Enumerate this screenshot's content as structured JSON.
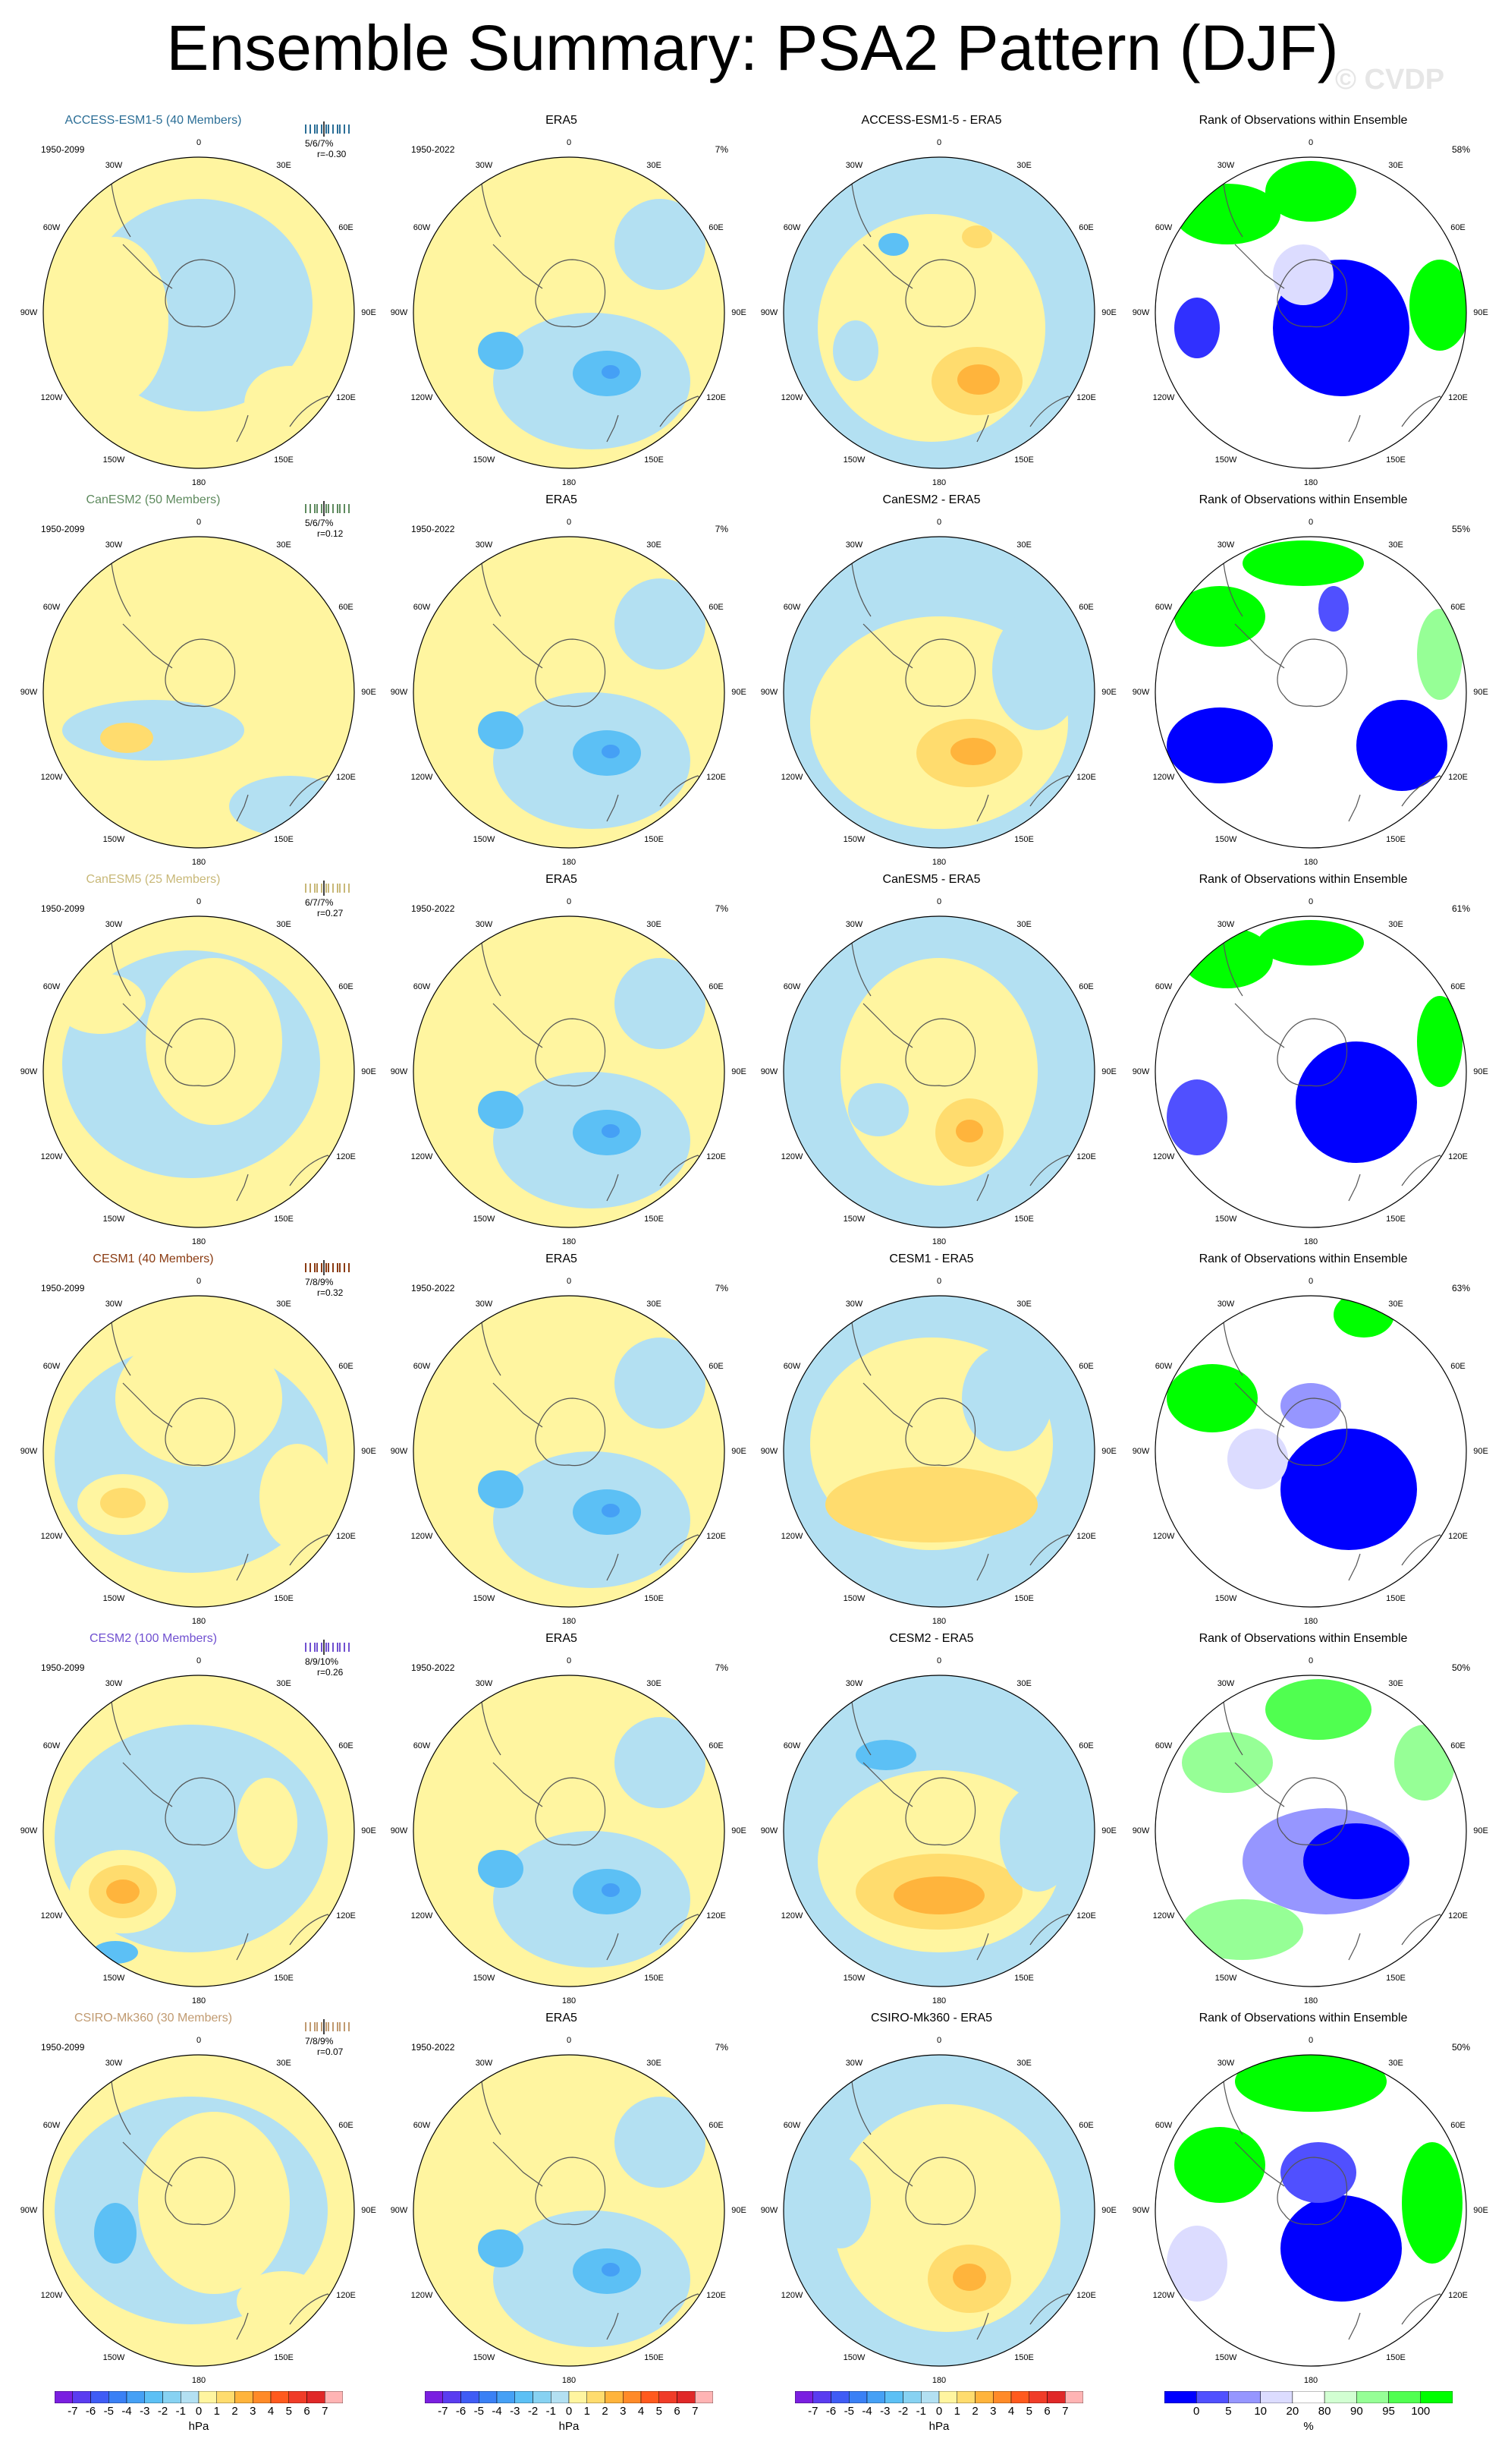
{
  "title": "Ensemble Summary: PSA2 Pattern (DJF)",
  "copyright": "© CVDP",
  "panel_titles": {
    "obs": "ERA5",
    "rank": "Rank of Observations within Ensemble"
  },
  "obs_years": "1950-2022",
  "obs_pct": "7%",
  "lon_labels": [
    "0",
    "30E",
    "60E",
    "90E",
    "120E",
    "150E",
    "180",
    "150W",
    "120W",
    "90W",
    "60W",
    "30W"
  ],
  "rows": [
    {
      "model": "ACCESS-ESM1-5 (40 Members)",
      "model_color": "#2b6e96",
      "years": "1950-2099",
      "stats": "5/6/7%",
      "r": "r=-0.30",
      "diff_title": "ACCESS-ESM1-5 - ERA5",
      "rank_pct": "58%"
    },
    {
      "model": "CanESM2 (50 Members)",
      "model_color": "#5e8a5e",
      "years": "1950-2099",
      "stats": "5/6/7%",
      "r": "r=0.12",
      "diff_title": "CanESM2 - ERA5",
      "rank_pct": "55%"
    },
    {
      "model": "CanESM5 (25 Members)",
      "model_color": "#c8b878",
      "years": "1950-2099",
      "stats": "6/7/7%",
      "r": "r=0.27",
      "diff_title": "CanESM5 - ERA5",
      "rank_pct": "61%"
    },
    {
      "model": "CESM1 (40 Members)",
      "model_color": "#8a3b12",
      "years": "1950-2099",
      "stats": "7/8/9%",
      "r": "r=0.32",
      "diff_title": "CESM1 - ERA5",
      "rank_pct": "63%"
    },
    {
      "model": "CESM2 (100 Members)",
      "model_color": "#7050d0",
      "years": "1950-2099",
      "stats": "8/9/10%",
      "r": "r=0.26",
      "diff_title": "CESM2 - ERA5",
      "rank_pct": "50%"
    },
    {
      "model": "CSIRO-Mk360 (30 Members)",
      "model_color": "#c09a70",
      "years": "1950-2099",
      "stats": "7/8/9%",
      "r": "r=0.07",
      "diff_title": "CSIRO-Mk360 - ERA5",
      "rank_pct": "50%"
    }
  ],
  "colorbar_hpa": {
    "labels": [
      "-7",
      "-6",
      "-5",
      "-4",
      "-3",
      "-2",
      "-1",
      "0",
      "1",
      "2",
      "3",
      "4",
      "5",
      "6",
      "7"
    ],
    "unit": "hPa",
    "colors": [
      "#7a1fe0",
      "#5a3cf0",
      "#3f5cf5",
      "#3a80f5",
      "#45a0f5",
      "#5cc0f5",
      "#87d2f2",
      "#b3e0f2",
      "#fff5a0",
      "#ffdc6e",
      "#ffb43c",
      "#ff8a28",
      "#ff5a1e",
      "#f03c28",
      "#e02828",
      "#ffb4b4"
    ]
  },
  "colorbar_rank": {
    "labels": [
      "0",
      "5",
      "10",
      "20",
      "80",
      "90",
      "95",
      "100"
    ],
    "unit": "%",
    "colors": [
      "#0000ff",
      "#5050ff",
      "#9696ff",
      "#dcdcff",
      "#ffffff",
      "#d2ffd2",
      "#96ff96",
      "#50ff50",
      "#00ff00"
    ]
  }
}
